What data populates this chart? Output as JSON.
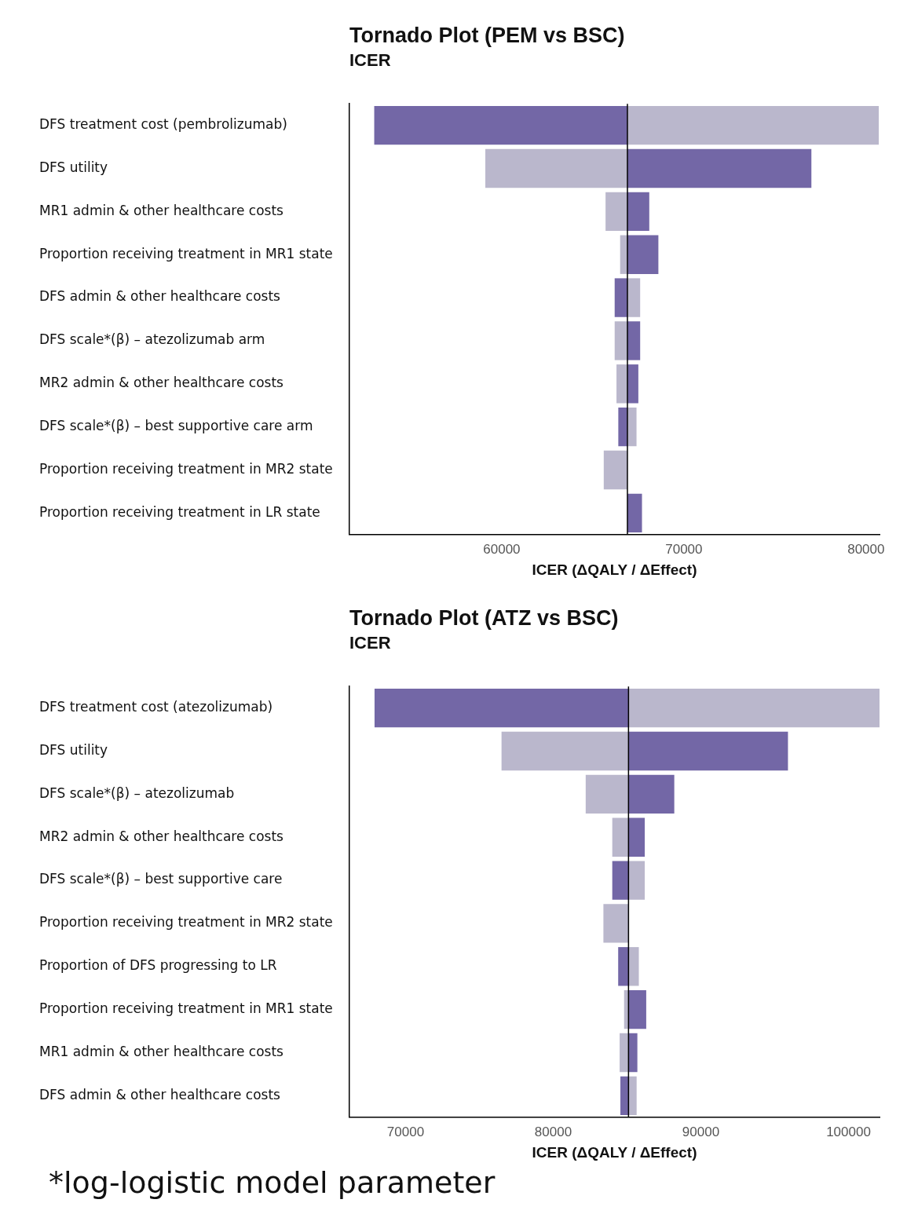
{
  "chart_data": [
    {
      "type": "bar",
      "orientation": "horizontal",
      "title": "Tornado Plot (PEM vs BSC)",
      "subtitle": "ICER",
      "xlabel": "ICER (ΔQALY / ΔEffect)",
      "categories": [
        "DFS treatment cost (pembrolizumab)",
        "DFS utility",
        "MR1 admin & other healthcare costs",
        "Proportion receiving treatment in MR1 state",
        "DFS admin & other healthcare costs",
        "DFS scale*(β) – atezolizumab arm",
        "MR2 admin & other healthcare costs",
        "DFS scale*(β) – best supportive care arm",
        "Proportion receiving treatment in MR2 state",
        "Proportion receiving treatment in LR state"
      ],
      "series": [
        {
          "color": "#7367a6",
          "base": [
            66900,
            66900,
            66900,
            66900,
            66900,
            66900,
            66900,
            66900,
            null,
            66900
          ],
          "values": [
            -13900,
            10100,
            1200,
            1700,
            -700,
            700,
            600,
            -500,
            null,
            800
          ]
        },
        {
          "color": "#bab7cc",
          "base": [
            66900,
            66900,
            66900,
            66900,
            66900,
            66900,
            66900,
            66900,
            66900,
            null
          ],
          "values": [
            13800,
            -7800,
            -1200,
            -400,
            700,
            -700,
            -600,
            500,
            -1300,
            null
          ]
        }
      ],
      "xlim": [
        51640,
        80740
      ],
      "xticks": [
        60000,
        70000,
        80000
      ],
      "grid": false,
      "legend": false,
      "ref_lines": [
        {
          "axis": "x",
          "value": 66900,
          "color": "#000000"
        }
      ]
    },
    {
      "type": "bar",
      "orientation": "horizontal",
      "title": "Tornado Plot (ATZ vs BSC)",
      "subtitle": "ICER",
      "xlabel": "ICER (ΔQALY / ΔEffect)",
      "categories": [
        "DFS treatment cost (atezolizumab)",
        "DFS utility",
        "DFS scale*(β) – atezolizumab",
        "MR2 admin & other healthcare costs",
        "DFS scale*(β) – best supportive care",
        "Proportion receiving treatment in MR2 state",
        "Proportion of DFS progressing to LR",
        "Proportion receiving treatment in MR1 state",
        "MR1 admin & other healthcare costs",
        "DFS admin & other healthcare costs"
      ],
      "series": [
        {
          "color": "#7367a6",
          "base": [
            85100,
            85100,
            85100,
            85100,
            85100,
            null,
            85100,
            85100,
            85100,
            85100
          ],
          "values": [
            -17200,
            10800,
            3100,
            1100,
            -1100,
            null,
            -700,
            1200,
            600,
            -550
          ]
        },
        {
          "color": "#bab7cc",
          "base": [
            85100,
            85100,
            85100,
            85100,
            85100,
            85100,
            85100,
            85100,
            85100,
            85100
          ],
          "values": [
            17000,
            -8600,
            -2900,
            -1100,
            1100,
            -1700,
            700,
            -300,
            -600,
            550
          ]
        }
      ],
      "xlim": [
        66200,
        102100
      ],
      "xticks": [
        70000,
        80000,
        90000,
        100000
      ],
      "grid": false,
      "legend": false,
      "ref_lines": [
        {
          "axis": "x",
          "value": 85100,
          "color": "#000000"
        }
      ],
      "annotations": [
        "*log-logistic model parameter"
      ]
    }
  ]
}
